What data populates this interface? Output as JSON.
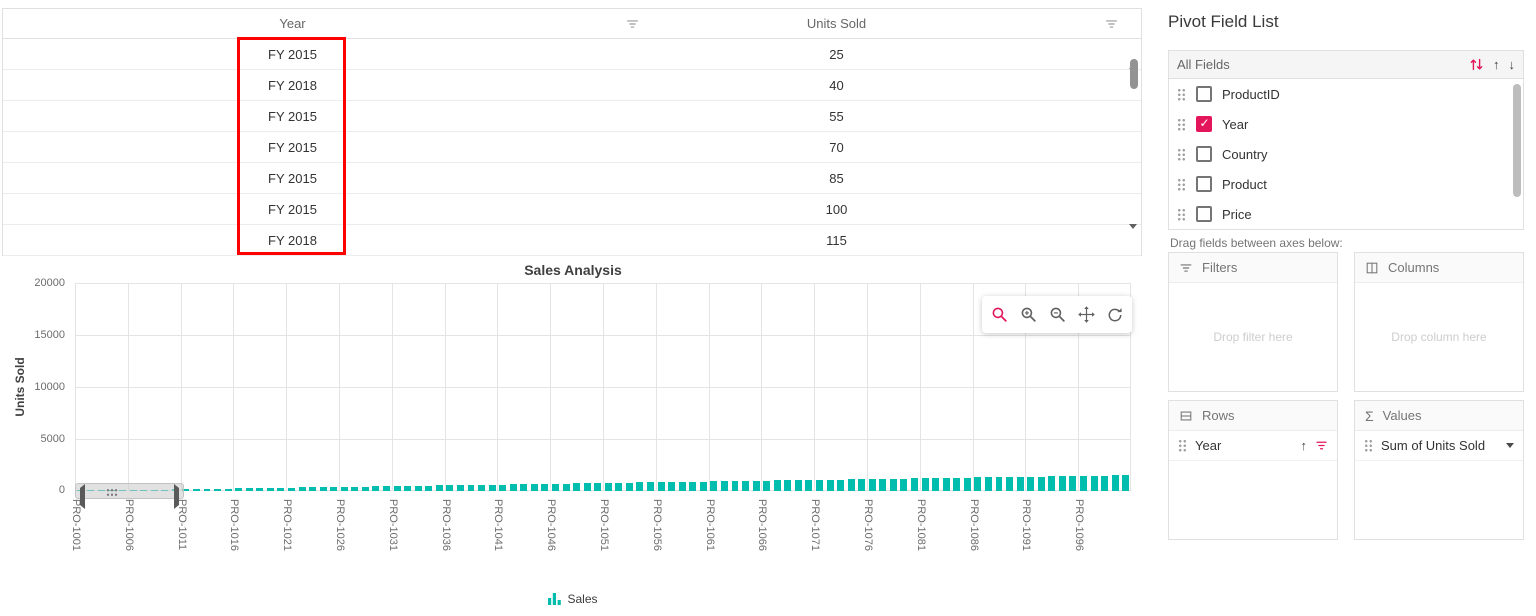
{
  "grid": {
    "columns": [
      {
        "label": "Year"
      },
      {
        "label": "Units Sold"
      }
    ],
    "rows": [
      [
        "FY 2015",
        "25"
      ],
      [
        "FY 2018",
        "40"
      ],
      [
        "FY 2015",
        "55"
      ],
      [
        "FY 2015",
        "70"
      ],
      [
        "FY 2015",
        "85"
      ],
      [
        "FY 2015",
        "100"
      ],
      [
        "FY 2018",
        "115"
      ]
    ]
  },
  "chart_data": {
    "type": "bar",
    "title": "Sales Analysis",
    "xlabel": "",
    "ylabel": "Units Sold",
    "ylim": [
      0,
      20000
    ],
    "yticks": [
      0,
      5000,
      10000,
      15000,
      20000
    ],
    "grid": "on",
    "legend_position": "bottom",
    "legend": [
      {
        "name": "Sales",
        "color": "#00bdae"
      }
    ],
    "bars_per_tick": 5,
    "xtick_labels": [
      "PRO-1001",
      "PRO-1006",
      "PRO-1011",
      "PRO-1016",
      "PRO-1021",
      "PRO-1026",
      "PRO-1031",
      "PRO-1036",
      "PRO-1041",
      "PRO-1046",
      "PRO-1051",
      "PRO-1056",
      "PRO-1061",
      "PRO-1066",
      "PRO-1071",
      "PRO-1076",
      "PRO-1081",
      "PRO-1086",
      "PRO-1091",
      "PRO-1096"
    ],
    "values": [
      25,
      40,
      55,
      70,
      85,
      100,
      115,
      130,
      145,
      160,
      175,
      190,
      205,
      220,
      235,
      250,
      265,
      280,
      295,
      310,
      325,
      340,
      355,
      370,
      385,
      400,
      415,
      430,
      445,
      460,
      475,
      490,
      505,
      520,
      535,
      550,
      565,
      580,
      595,
      610,
      625,
      640,
      655,
      670,
      685,
      700,
      715,
      730,
      745,
      760,
      775,
      790,
      805,
      820,
      835,
      850,
      865,
      880,
      895,
      910,
      925,
      940,
      955,
      970,
      985,
      1000,
      1015,
      1030,
      1045,
      1060,
      1075,
      1090,
      1105,
      1120,
      1135,
      1150,
      1165,
      1180,
      1195,
      1210,
      1225,
      1240,
      1255,
      1270,
      1285,
      1300,
      1315,
      1330,
      1345,
      1360,
      1375,
      1390,
      1405,
      1420,
      1435,
      1450,
      1465,
      1480,
      1495,
      1510
    ]
  },
  "chart_toolbar": {
    "tools": [
      "zoom-select",
      "zoom-in",
      "zoom-out",
      "pan",
      "reset-zoom"
    ],
    "active_tool": "zoom-select"
  },
  "field_list": {
    "title": "Pivot Field List",
    "all_fields_label": "All Fields",
    "fields": [
      {
        "label": "ProductID",
        "checked": false
      },
      {
        "label": "Year",
        "checked": true
      },
      {
        "label": "Country",
        "checked": false
      },
      {
        "label": "Product",
        "checked": false
      },
      {
        "label": "Price",
        "checked": false
      }
    ],
    "drag_hint": "Drag fields between axes below:",
    "areas": {
      "filters": {
        "label": "Filters",
        "placeholder": "Drop filter here"
      },
      "columns": {
        "label": "Columns",
        "placeholder": "Drop column here"
      },
      "rows": {
        "label": "Rows",
        "chips": [
          {
            "label": "Year"
          }
        ]
      },
      "values": {
        "label": "Values",
        "chips": [
          {
            "label": "Sum of Units Sold"
          }
        ]
      }
    }
  },
  "colors": {
    "accent": "#e3165b",
    "series": "#00bdae",
    "annotation_red": "#ff0000"
  }
}
